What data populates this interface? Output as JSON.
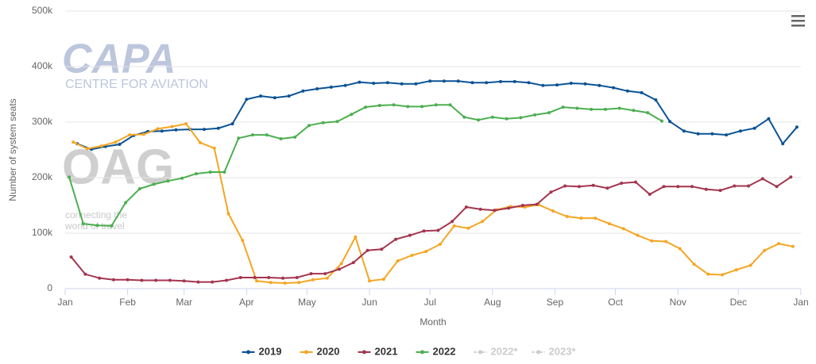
{
  "chart_data": {
    "type": "line",
    "y_axis_label": "Number of system seats",
    "x_axis_label": "Month",
    "watermarks": [
      "CAPA",
      "CENTRE FOR AVIATION",
      "OAG",
      "connecting the",
      "world of travel"
    ],
    "xlim": [
      0,
      365
    ],
    "xticks": [
      {
        "value": 0,
        "label": "Jan"
      },
      {
        "value": 31,
        "label": "Feb"
      },
      {
        "value": 59,
        "label": "Mar"
      },
      {
        "value": 90,
        "label": "Apr"
      },
      {
        "value": 120,
        "label": "May"
      },
      {
        "value": 151,
        "label": "Jun"
      },
      {
        "value": 181,
        "label": "Jul"
      },
      {
        "value": 212,
        "label": "Aug"
      },
      {
        "value": 243,
        "label": "Sep"
      },
      {
        "value": 273,
        "label": "Oct"
      },
      {
        "value": 304,
        "label": "Nov"
      },
      {
        "value": 334,
        "label": "Dec"
      },
      {
        "value": 365,
        "label": "Jan"
      }
    ],
    "ylim": [
      0,
      500000
    ],
    "yticks": [
      0,
      {
        "value": 100000,
        "label": "100k"
      },
      {
        "value": 200000,
        "label": "200k"
      },
      {
        "value": 300000,
        "label": "300k"
      },
      {
        "value": 400000,
        "label": "400k"
      },
      {
        "value": 500000,
        "label": "500k"
      }
    ],
    "grid": true,
    "legend": "bottom",
    "series": [
      {
        "name": "2019",
        "color": "#0b5394",
        "visible": true,
        "x": [
          6,
          13,
          20,
          27,
          34,
          41,
          48,
          55,
          62,
          69,
          76,
          83,
          90,
          97,
          104,
          111,
          118,
          125,
          132,
          139,
          146,
          153,
          160,
          167,
          174,
          181,
          188,
          195,
          202,
          209,
          216,
          223,
          230,
          237,
          244,
          251,
          258,
          265,
          272,
          279,
          286,
          293,
          300,
          307,
          314,
          321,
          328,
          335,
          342,
          349,
          356,
          363
        ],
        "values": [
          261000,
          251000,
          256000,
          260000,
          276000,
          283000,
          284000,
          286000,
          287000,
          287000,
          289000,
          297000,
          341000,
          347000,
          344000,
          347000,
          356000,
          360000,
          363000,
          366000,
          372000,
          370000,
          371000,
          369000,
          369000,
          374000,
          374000,
          374000,
          371000,
          371000,
          373000,
          373000,
          371000,
          366000,
          367000,
          370000,
          369000,
          366000,
          362000,
          356000,
          353000,
          340000,
          301000,
          284000,
          279000,
          279000,
          277000,
          284000,
          289000,
          306000,
          261000,
          291000
        ]
      },
      {
        "name": "2020",
        "color": "#f5a623",
        "visible": true,
        "x": [
          4,
          11,
          18,
          25,
          32,
          39,
          46,
          53,
          60,
          67,
          74,
          81,
          88,
          95,
          102,
          109,
          116,
          123,
          130,
          137,
          144,
          151,
          158,
          165,
          172,
          179,
          186,
          193,
          200,
          207,
          214,
          221,
          228,
          235,
          242,
          249,
          256,
          263,
          270,
          277,
          284,
          291,
          298,
          305,
          312,
          319,
          326,
          333,
          340,
          347,
          354,
          361
        ],
        "values": [
          264000,
          252000,
          257000,
          264000,
          277000,
          278000,
          288000,
          292000,
          297000,
          263000,
          253000,
          135000,
          87000,
          14000,
          11000,
          10000,
          11000,
          16000,
          19000,
          45000,
          93000,
          14000,
          17000,
          50000,
          60000,
          67000,
          80000,
          113000,
          109000,
          121000,
          142000,
          148000,
          147000,
          151000,
          140000,
          130000,
          127000,
          127000,
          117000,
          108000,
          96000,
          86000,
          85000,
          72000,
          44000,
          26000,
          25000,
          34000,
          42000,
          69000,
          81000,
          76000
        ]
      },
      {
        "name": "2021",
        "color": "#a3354f",
        "visible": true,
        "x": [
          3,
          10,
          17,
          24,
          31,
          38,
          45,
          52,
          59,
          66,
          73,
          80,
          87,
          94,
          101,
          108,
          115,
          122,
          129,
          136,
          143,
          150,
          157,
          164,
          171,
          178,
          185,
          192,
          199,
          206,
          213,
          220,
          227,
          234,
          241,
          248,
          255,
          262,
          269,
          276,
          283,
          290,
          297,
          304,
          311,
          318,
          325,
          332,
          339,
          346,
          353,
          360
        ],
        "values": [
          57000,
          26000,
          19000,
          16000,
          16000,
          15000,
          15000,
          15000,
          14000,
          12000,
          12000,
          15000,
          20000,
          20000,
          20000,
          19000,
          20000,
          27000,
          27000,
          35000,
          47000,
          69000,
          71000,
          89000,
          96000,
          104000,
          105000,
          121000,
          147000,
          143000,
          141000,
          145000,
          150000,
          152000,
          174000,
          185000,
          184000,
          186000,
          181000,
          190000,
          192000,
          170000,
          184000,
          184000,
          184000,
          179000,
          177000,
          185000,
          185000,
          198000,
          184000,
          201000
        ]
      },
      {
        "name": "2022",
        "color": "#4caf50",
        "visible": true,
        "x": [
          2,
          9,
          16,
          23,
          30,
          37,
          44,
          51,
          58,
          65,
          72,
          79,
          86,
          93,
          100,
          107,
          114,
          121,
          128,
          135,
          142,
          149,
          156,
          163,
          170,
          177,
          184,
          191,
          198,
          205,
          212,
          219,
          226,
          233,
          240,
          247,
          254,
          261,
          268,
          275,
          282,
          289,
          296
        ],
        "values": [
          201000,
          117000,
          114000,
          113000,
          155000,
          180000,
          188000,
          194000,
          199000,
          207000,
          210000,
          210000,
          271000,
          277000,
          277000,
          270000,
          273000,
          294000,
          299000,
          301000,
          314000,
          327000,
          330000,
          331000,
          328000,
          328000,
          331000,
          331000,
          309000,
          304000,
          309000,
          306000,
          308000,
          313000,
          317000,
          327000,
          325000,
          323000,
          323000,
          325000,
          321000,
          317000,
          302000
        ]
      },
      {
        "name": "2022*",
        "color": "#cccccc",
        "visible": false,
        "x": [],
        "values": []
      },
      {
        "name": "2023*",
        "color": "#cccccc",
        "visible": false,
        "x": [],
        "values": []
      }
    ]
  }
}
